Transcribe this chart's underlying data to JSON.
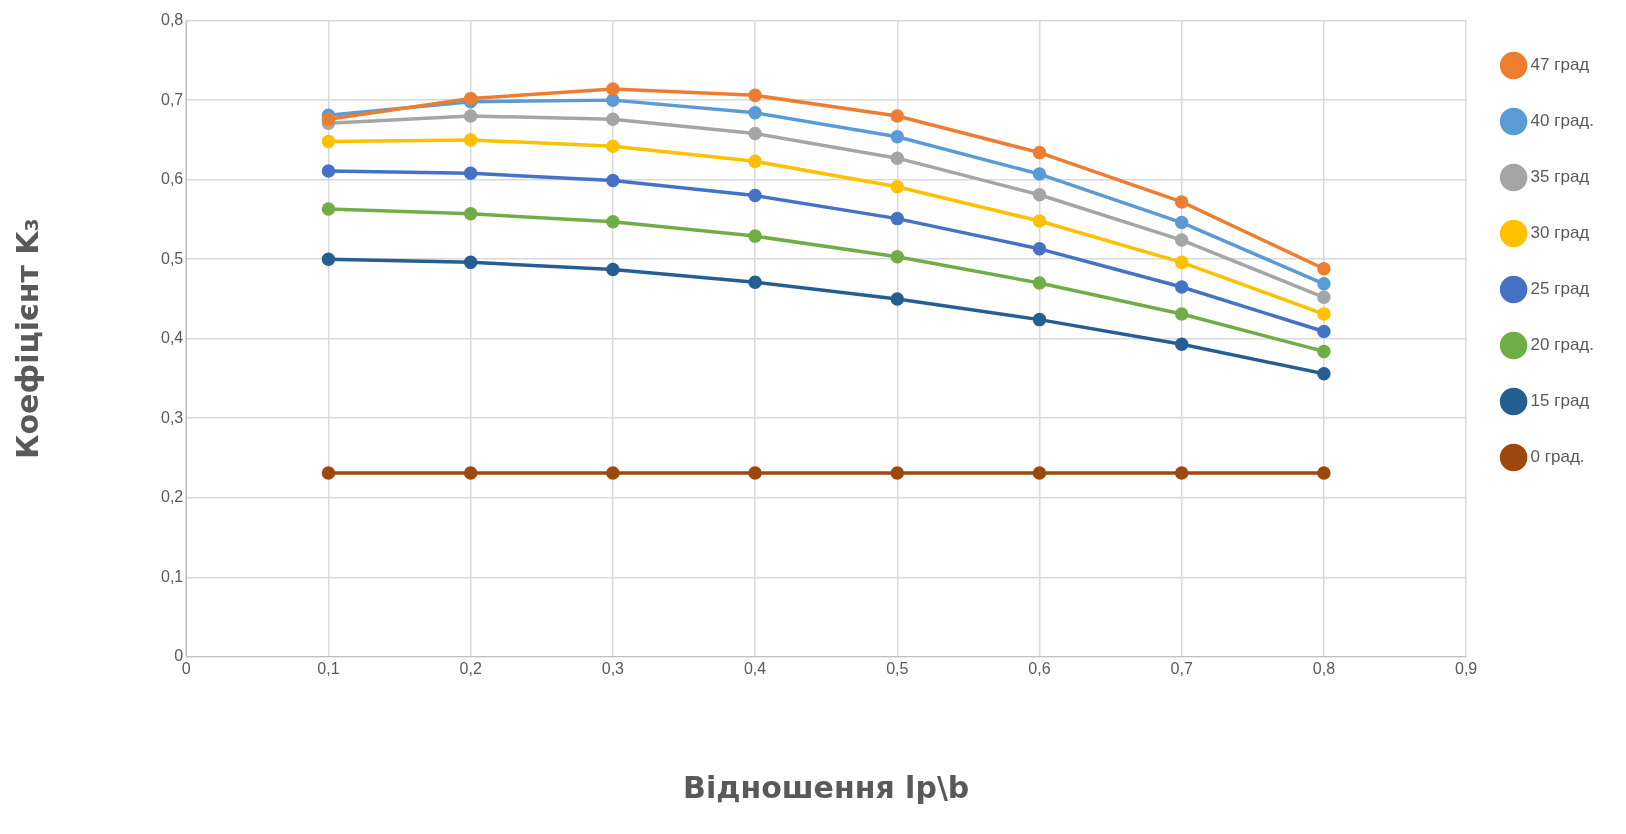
{
  "chart_data": {
    "type": "line",
    "xlabel": "Відношення lp\\b",
    "ylabel": "Коефіцієнт K₃",
    "x": [
      0.1,
      0.2,
      0.3,
      0.4,
      0.5,
      0.6,
      0.7,
      0.8
    ],
    "series": [
      {
        "name": "47 град",
        "color": "#ed7d31",
        "values": [
          0.676,
          0.702,
          0.714,
          0.706,
          0.68,
          0.634,
          0.572,
          0.488
        ]
      },
      {
        "name": "40 град.",
        "color": "#5b9bd5",
        "values": [
          0.681,
          0.698,
          0.7,
          0.684,
          0.654,
          0.607,
          0.546,
          0.469
        ]
      },
      {
        "name": "35 град",
        "color": "#a5a5a5",
        "values": [
          0.671,
          0.68,
          0.676,
          0.658,
          0.627,
          0.581,
          0.524,
          0.452
        ]
      },
      {
        "name": "30 град",
        "color": "#ffc000",
        "values": [
          0.648,
          0.65,
          0.642,
          0.623,
          0.591,
          0.548,
          0.496,
          0.431
        ]
      },
      {
        "name": "25 град",
        "color": "#4472c4",
        "values": [
          0.611,
          0.608,
          0.599,
          0.58,
          0.551,
          0.513,
          0.465,
          0.409
        ]
      },
      {
        "name": "20 град.",
        "color": "#70ad47",
        "values": [
          0.563,
          0.557,
          0.547,
          0.529,
          0.503,
          0.47,
          0.431,
          0.384
        ]
      },
      {
        "name": "15 град",
        "color": "#255e91",
        "values": [
          0.5,
          0.496,
          0.487,
          0.471,
          0.45,
          0.424,
          0.393,
          0.356
        ]
      },
      {
        "name": "0 град.",
        "color": "#9e480e",
        "values": [
          0.231,
          0.231,
          0.231,
          0.231,
          0.231,
          0.231,
          0.231,
          0.231
        ]
      }
    ],
    "xlim": [
      0,
      0.9
    ],
    "xticks": [
      0,
      {
        "value": 0.1,
        "label": "0,1"
      },
      {
        "value": 0.2,
        "label": "0,2"
      },
      {
        "value": 0.3,
        "label": "0,3"
      },
      {
        "value": 0.4,
        "label": "0,4"
      },
      {
        "value": 0.5,
        "label": "0,5"
      },
      {
        "value": 0.6,
        "label": "0,6"
      },
      {
        "value": 0.7,
        "label": "0,7"
      },
      {
        "value": 0.8,
        "label": "0,8"
      },
      {
        "value": 0.9,
        "label": "0,9"
      }
    ],
    "ylim": [
      0,
      0.8
    ],
    "yticks": [
      0,
      {
        "value": 0.1,
        "label": "0,1"
      },
      {
        "value": 0.2,
        "label": "0,2"
      },
      {
        "value": 0.3,
        "label": "0,3"
      },
      {
        "value": 0.4,
        "label": "0,4"
      },
      {
        "value": 0.5,
        "label": "0,5"
      },
      {
        "value": 0.6,
        "label": "0,6"
      },
      {
        "value": 0.7,
        "label": "0,7"
      },
      {
        "value": 0.8,
        "label": "0,8"
      }
    ],
    "grid": true,
    "legend": "right",
    "marker": "circle",
    "line_style": "solid"
  }
}
